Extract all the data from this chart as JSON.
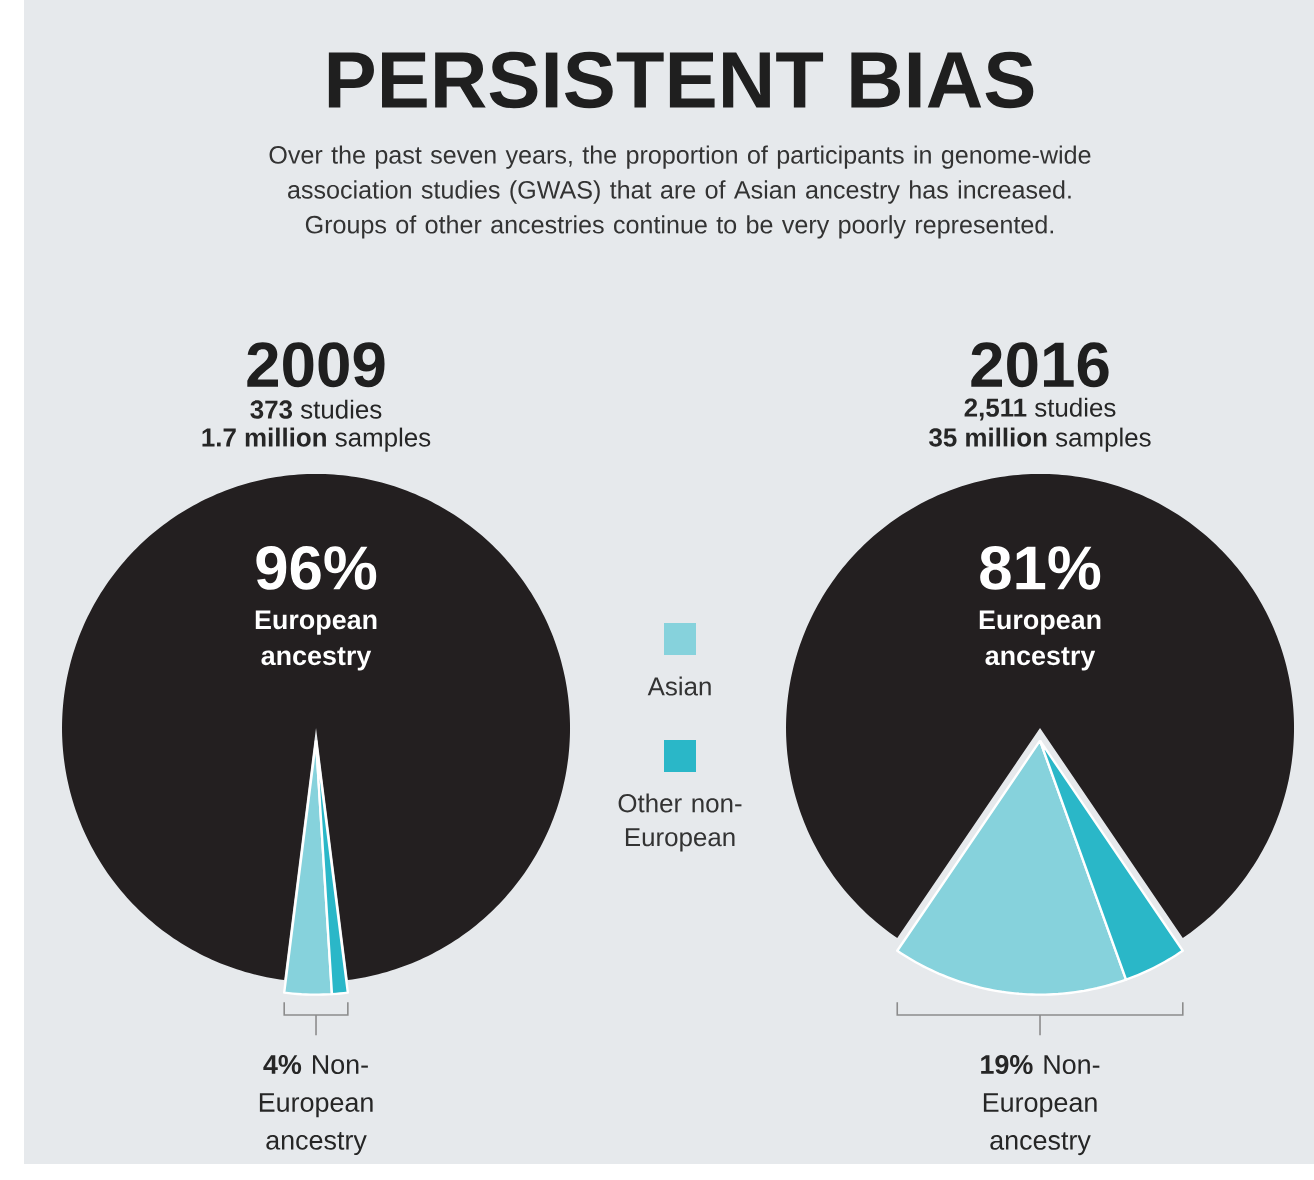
{
  "chart_data": [
    {
      "type": "other",
      "title": "PERSISTENT BIAS",
      "subtitle": "Over the past seven years, the proportion of participants in genome-wide association studies (GWAS) that are of Asian ancestry has increased. Groups of other ancestries continue to be very poorly represented."
    },
    {
      "type": "pie",
      "title": "2009",
      "annotations": [
        "**373** studies",
        "**1.7 million** samples",
        "**4%** Non-European ancestry"
      ],
      "categories": [
        "European ancestry",
        "Asian",
        "Other non-European"
      ],
      "values": [
        96,
        3,
        1
      ],
      "colors": [
        "#231f20",
        "#86d2dc",
        "#2ab7c8"
      ],
      "value_labels": [
        "96%",
        null,
        null
      ],
      "legend": "right"
    },
    {
      "type": "pie",
      "title": "2016",
      "annotations": [
        "**2,511** studies",
        "**35 million** samples",
        "**19%** Non-European ancestry"
      ],
      "categories": [
        "European ancestry",
        null,
        null
      ],
      "values": [
        81,
        15,
        4
      ],
      "colors": [
        "#231f20",
        "#86d2dc",
        "#2ab7c8"
      ],
      "value_labels": [
        "81%",
        null,
        null
      ]
    }
  ]
}
